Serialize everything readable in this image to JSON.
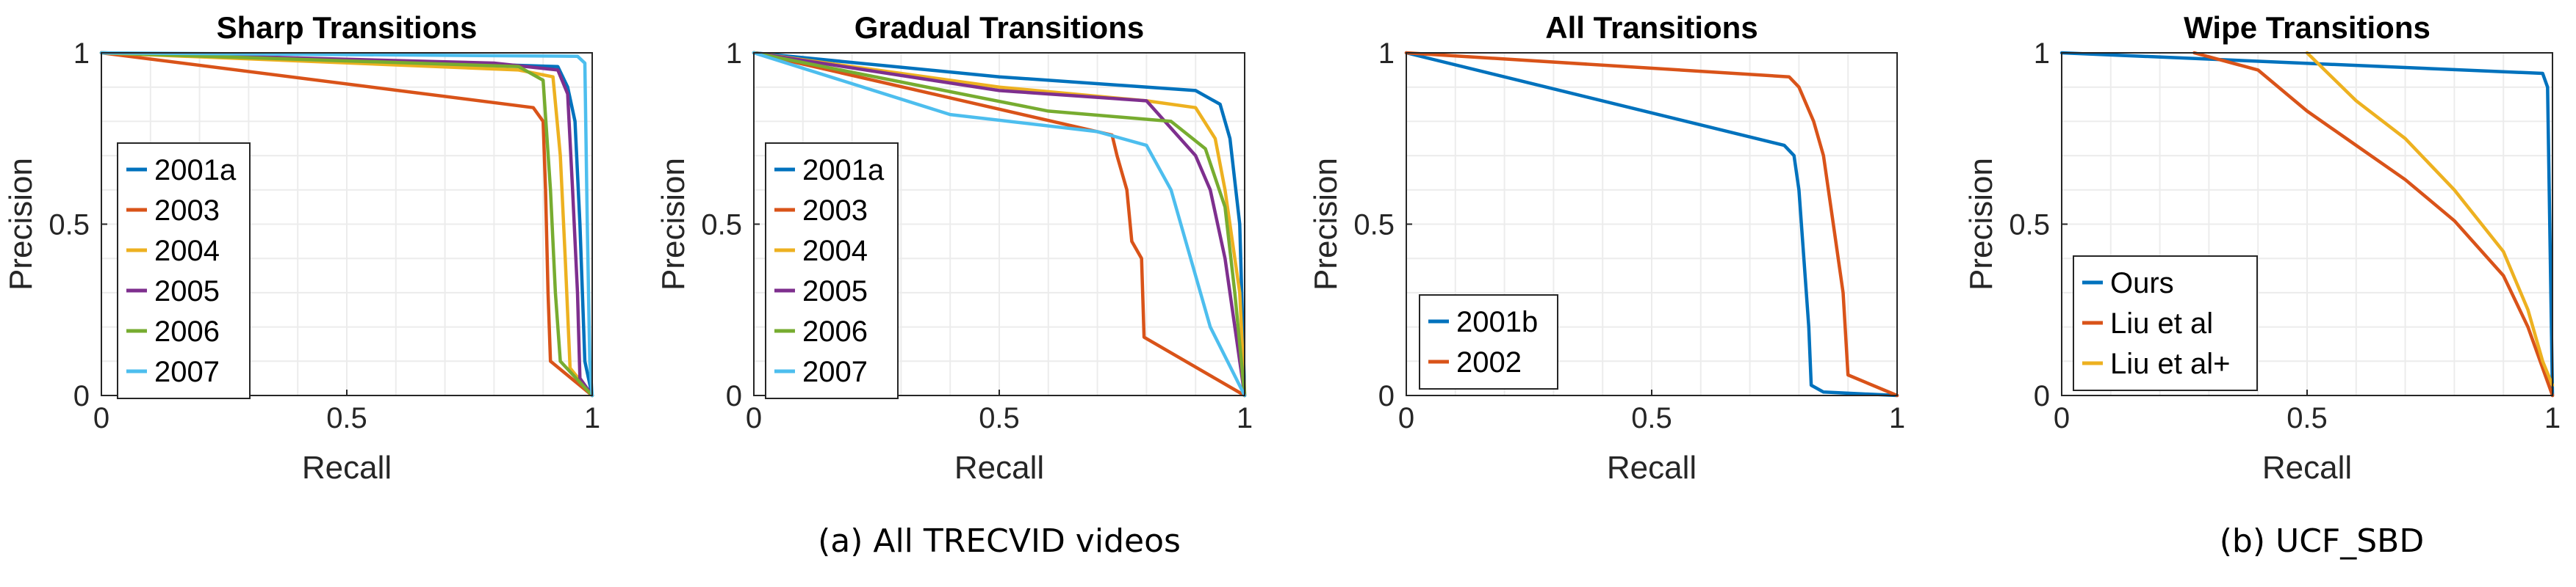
{
  "captions": {
    "a": "(a) All TRECVID videos",
    "b": "(b) UCF_SBD"
  },
  "chart_data": [
    {
      "type": "line",
      "title": "Sharp Transitions",
      "xlabel": "Recall",
      "ylabel": "Precision",
      "xlim": [
        0,
        1
      ],
      "ylim": [
        0,
        1
      ],
      "xticks": [
        0,
        0.5,
        1
      ],
      "xtick_labels": [
        "0",
        "0.5",
        "1"
      ],
      "yticks": [
        0,
        0.5,
        1
      ],
      "ytick_labels": [
        "0",
        "0.5",
        "1"
      ],
      "grid": true,
      "legend_position": "left",
      "series": [
        {
          "name": "2001a",
          "color": "#0072BD",
          "points": [
            [
              0,
              1
            ],
            [
              0.7,
              0.97
            ],
            [
              0.93,
              0.96
            ],
            [
              0.95,
              0.9
            ],
            [
              0.965,
              0.8
            ],
            [
              0.975,
              0.5
            ],
            [
              0.985,
              0.1
            ],
            [
              1,
              0
            ]
          ]
        },
        {
          "name": "2003",
          "color": "#D95319",
          "points": [
            [
              0,
              1
            ],
            [
              0.88,
              0.84
            ],
            [
              0.9,
              0.8
            ],
            [
              0.905,
              0.6
            ],
            [
              0.91,
              0.3
            ],
            [
              0.915,
              0.1
            ],
            [
              1,
              0
            ]
          ]
        },
        {
          "name": "2004",
          "color": "#EDB120",
          "points": [
            [
              0,
              1
            ],
            [
              0.85,
              0.95
            ],
            [
              0.92,
              0.93
            ],
            [
              0.935,
              0.7
            ],
            [
              0.945,
              0.4
            ],
            [
              0.955,
              0.08
            ],
            [
              1,
              0
            ]
          ]
        },
        {
          "name": "2005",
          "color": "#7E2F8E",
          "points": [
            [
              0,
              1
            ],
            [
              0.8,
              0.97
            ],
            [
              0.93,
              0.95
            ],
            [
              0.95,
              0.88
            ],
            [
              0.96,
              0.6
            ],
            [
              0.97,
              0.3
            ],
            [
              0.975,
              0.05
            ],
            [
              1,
              0
            ]
          ]
        },
        {
          "name": "2006",
          "color": "#77AC30",
          "points": [
            [
              0,
              1
            ],
            [
              0.85,
              0.96
            ],
            [
              0.9,
              0.92
            ],
            [
              0.915,
              0.6
            ],
            [
              0.925,
              0.3
            ],
            [
              0.935,
              0.1
            ],
            [
              1,
              0
            ]
          ]
        },
        {
          "name": "2007",
          "color": "#4DBEEE",
          "points": [
            [
              0,
              1
            ],
            [
              0.97,
              0.99
            ],
            [
              0.985,
              0.97
            ],
            [
              0.99,
              0.5
            ],
            [
              0.995,
              0.1
            ],
            [
              1,
              0
            ]
          ]
        }
      ]
    },
    {
      "type": "line",
      "title": "Gradual Transitions",
      "xlabel": "Recall",
      "ylabel": "Precision",
      "xlim": [
        0,
        1
      ],
      "ylim": [
        0,
        1
      ],
      "xticks": [
        0,
        0.5,
        1
      ],
      "xtick_labels": [
        "0",
        "0.5",
        "1"
      ],
      "yticks": [
        0,
        0.5,
        1
      ],
      "ytick_labels": [
        "0",
        "0.5",
        "1"
      ],
      "grid": true,
      "legend_position": "left",
      "series": [
        {
          "name": "2001a",
          "color": "#0072BD",
          "points": [
            [
              0,
              1
            ],
            [
              0.5,
              0.93
            ],
            [
              0.9,
              0.89
            ],
            [
              0.95,
              0.85
            ],
            [
              0.97,
              0.75
            ],
            [
              0.99,
              0.5
            ],
            [
              1,
              0
            ]
          ]
        },
        {
          "name": "2003",
          "color": "#D95319",
          "points": [
            [
              0,
              1
            ],
            [
              0.73,
              0.76
            ],
            [
              0.74,
              0.7
            ],
            [
              0.76,
              0.6
            ],
            [
              0.77,
              0.45
            ],
            [
              0.79,
              0.4
            ],
            [
              0.795,
              0.17
            ],
            [
              1,
              0
            ]
          ]
        },
        {
          "name": "2004",
          "color": "#EDB120",
          "points": [
            [
              0,
              1
            ],
            [
              0.5,
              0.9
            ],
            [
              0.8,
              0.86
            ],
            [
              0.9,
              0.84
            ],
            [
              0.94,
              0.75
            ],
            [
              0.96,
              0.6
            ],
            [
              0.99,
              0.3
            ],
            [
              1,
              0
            ]
          ]
        },
        {
          "name": "2005",
          "color": "#7E2F8E",
          "points": [
            [
              0,
              1
            ],
            [
              0.5,
              0.89
            ],
            [
              0.8,
              0.86
            ],
            [
              0.85,
              0.78
            ],
            [
              0.9,
              0.7
            ],
            [
              0.93,
              0.6
            ],
            [
              0.96,
              0.4
            ],
            [
              1,
              0
            ]
          ]
        },
        {
          "name": "2006",
          "color": "#77AC30",
          "points": [
            [
              0,
              1
            ],
            [
              0.6,
              0.83
            ],
            [
              0.85,
              0.8
            ],
            [
              0.92,
              0.72
            ],
            [
              0.96,
              0.55
            ],
            [
              0.98,
              0.3
            ],
            [
              1,
              0
            ]
          ]
        },
        {
          "name": "2007",
          "color": "#4DBEEE",
          "points": [
            [
              0,
              1
            ],
            [
              0.4,
              0.82
            ],
            [
              0.7,
              0.77
            ],
            [
              0.8,
              0.73
            ],
            [
              0.85,
              0.6
            ],
            [
              0.9,
              0.35
            ],
            [
              0.93,
              0.2
            ],
            [
              1,
              0
            ]
          ]
        }
      ]
    },
    {
      "type": "line",
      "title": "All Transitions",
      "xlabel": "Recall",
      "ylabel": "Precision",
      "xlim": [
        0,
        1
      ],
      "ylim": [
        0,
        1
      ],
      "xticks": [
        0,
        0.5,
        1
      ],
      "xtick_labels": [
        "0",
        "0.5",
        "1"
      ],
      "yticks": [
        0,
        0.5,
        1
      ],
      "ytick_labels": [
        "0",
        "0.5",
        "1"
      ],
      "grid": true,
      "legend_position": "bottom-left",
      "series": [
        {
          "name": "2001b",
          "color": "#0072BD",
          "points": [
            [
              0,
              1
            ],
            [
              0.77,
              0.73
            ],
            [
              0.79,
              0.7
            ],
            [
              0.8,
              0.6
            ],
            [
              0.81,
              0.4
            ],
            [
              0.82,
              0.2
            ],
            [
              0.825,
              0.03
            ],
            [
              0.85,
              0.01
            ],
            [
              1,
              0
            ]
          ]
        },
        {
          "name": "2002",
          "color": "#D95319",
          "points": [
            [
              0,
              1
            ],
            [
              0.78,
              0.93
            ],
            [
              0.8,
              0.9
            ],
            [
              0.83,
              0.8
            ],
            [
              0.85,
              0.7
            ],
            [
              0.87,
              0.5
            ],
            [
              0.89,
              0.3
            ],
            [
              0.9,
              0.06
            ],
            [
              1,
              0
            ]
          ]
        }
      ]
    },
    {
      "type": "line",
      "title": "Wipe Transitions",
      "xlabel": "Recall",
      "ylabel": "Precision",
      "xlim": [
        0,
        1
      ],
      "ylim": [
        0,
        1
      ],
      "xticks": [
        0,
        0.5,
        1
      ],
      "xtick_labels": [
        "0",
        "0.5",
        "1"
      ],
      "yticks": [
        0,
        0.5,
        1
      ],
      "ytick_labels": [
        "0",
        "0.5",
        "1"
      ],
      "grid": true,
      "legend_position": "bottom-left",
      "series": [
        {
          "name": "Ours",
          "color": "#0072BD",
          "points": [
            [
              0,
              1
            ],
            [
              0.98,
              0.94
            ],
            [
              0.99,
              0.9
            ],
            [
              1,
              0
            ]
          ]
        },
        {
          "name": "Liu et al",
          "color": "#D95319",
          "points": [
            [
              0.27,
              1
            ],
            [
              0.4,
              0.95
            ],
            [
              0.5,
              0.83
            ],
            [
              0.6,
              0.73
            ],
            [
              0.7,
              0.63
            ],
            [
              0.8,
              0.51
            ],
            [
              0.9,
              0.35
            ],
            [
              0.95,
              0.2
            ],
            [
              0.98,
              0.08
            ],
            [
              1,
              0
            ]
          ]
        },
        {
          "name": "Liu et al+",
          "color": "#EDB120",
          "points": [
            [
              0.5,
              1
            ],
            [
              0.6,
              0.86
            ],
            [
              0.7,
              0.75
            ],
            [
              0.8,
              0.6
            ],
            [
              0.9,
              0.42
            ],
            [
              0.95,
              0.25
            ],
            [
              0.98,
              0.1
            ],
            [
              1,
              0.03
            ]
          ]
        }
      ]
    }
  ]
}
